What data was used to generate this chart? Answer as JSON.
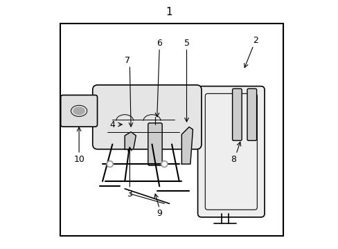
{
  "background_color": "#ffffff",
  "border_color": "#000000",
  "line_color": "#000000",
  "text_color": "#000000",
  "figsize": [
    4.89,
    3.6
  ],
  "dpi": 100
}
